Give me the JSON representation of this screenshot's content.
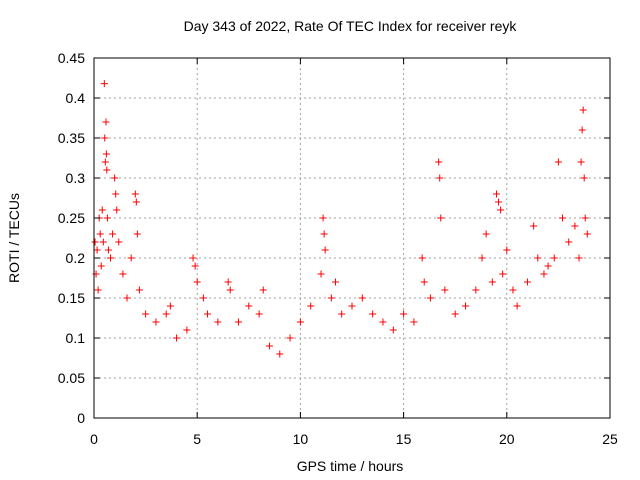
{
  "chart_data": {
    "type": "scatter",
    "title": "Day 343 of 2022, Rate Of TEC Index for receiver reyk",
    "xlabel": "GPS time / hours",
    "ylabel": "ROTI / TECUs",
    "xlim": [
      0,
      25
    ],
    "ylim": [
      0,
      0.45
    ],
    "x_ticks": [
      0,
      5,
      10,
      15,
      20,
      25
    ],
    "x_tick_labels": [
      "0",
      "5",
      "10",
      "15",
      "20",
      "25"
    ],
    "y_ticks": [
      0,
      0.05,
      0.1,
      0.15,
      0.2,
      0.25,
      0.3,
      0.35,
      0.4,
      0.45
    ],
    "y_tick_labels": [
      "0",
      "0.05",
      "0.1",
      "0.15",
      "0.2",
      "0.25",
      "0.3",
      "0.35",
      "0.4",
      "0.45"
    ],
    "grid": true,
    "marker": "+",
    "marker_color": "#ff0000",
    "series": [
      {
        "values": [
          [
            0.05,
            0.22
          ],
          [
            0.1,
            0.18
          ],
          [
            0.15,
            0.21
          ],
          [
            0.2,
            0.16
          ],
          [
            0.25,
            0.25
          ],
          [
            0.3,
            0.23
          ],
          [
            0.35,
            0.19
          ],
          [
            0.4,
            0.26
          ],
          [
            0.45,
            0.22
          ],
          [
            0.5,
            0.418
          ],
          [
            0.52,
            0.35
          ],
          [
            0.55,
            0.32
          ],
          [
            0.58,
            0.37
          ],
          [
            0.6,
            0.33
          ],
          [
            0.62,
            0.31
          ],
          [
            0.65,
            0.25
          ],
          [
            0.7,
            0.21
          ],
          [
            0.8,
            0.2
          ],
          [
            0.9,
            0.23
          ],
          [
            1.0,
            0.3
          ],
          [
            1.05,
            0.28
          ],
          [
            1.1,
            0.26
          ],
          [
            1.2,
            0.22
          ],
          [
            1.4,
            0.18
          ],
          [
            1.6,
            0.15
          ],
          [
            1.8,
            0.2
          ],
          [
            2.0,
            0.28
          ],
          [
            2.05,
            0.27
          ],
          [
            2.1,
            0.23
          ],
          [
            2.2,
            0.16
          ],
          [
            2.5,
            0.13
          ],
          [
            3.0,
            0.12
          ],
          [
            3.5,
            0.13
          ],
          [
            3.7,
            0.14
          ],
          [
            4.0,
            0.1
          ],
          [
            4.5,
            0.11
          ],
          [
            4.8,
            0.2
          ],
          [
            4.9,
            0.19
          ],
          [
            5.0,
            0.17
          ],
          [
            5.3,
            0.15
          ],
          [
            5.5,
            0.13
          ],
          [
            6.0,
            0.12
          ],
          [
            6.5,
            0.17
          ],
          [
            6.6,
            0.16
          ],
          [
            7.0,
            0.12
          ],
          [
            7.5,
            0.14
          ],
          [
            8.0,
            0.13
          ],
          [
            8.2,
            0.16
          ],
          [
            8.5,
            0.09
          ],
          [
            9.0,
            0.08
          ],
          [
            9.5,
            0.1
          ],
          [
            10.0,
            0.12
          ],
          [
            10.5,
            0.14
          ],
          [
            11.0,
            0.18
          ],
          [
            11.1,
            0.25
          ],
          [
            11.15,
            0.23
          ],
          [
            11.2,
            0.21
          ],
          [
            11.5,
            0.15
          ],
          [
            11.7,
            0.17
          ],
          [
            12.0,
            0.13
          ],
          [
            12.5,
            0.14
          ],
          [
            13.0,
            0.15
          ],
          [
            13.5,
            0.13
          ],
          [
            14.0,
            0.12
          ],
          [
            14.5,
            0.11
          ],
          [
            15.0,
            0.13
          ],
          [
            15.5,
            0.12
          ],
          [
            15.9,
            0.2
          ],
          [
            16.0,
            0.17
          ],
          [
            16.3,
            0.15
          ],
          [
            16.7,
            0.32
          ],
          [
            16.75,
            0.3
          ],
          [
            16.8,
            0.25
          ],
          [
            17.0,
            0.16
          ],
          [
            17.5,
            0.13
          ],
          [
            18.0,
            0.14
          ],
          [
            18.5,
            0.16
          ],
          [
            18.8,
            0.2
          ],
          [
            19.0,
            0.23
          ],
          [
            19.3,
            0.17
          ],
          [
            19.5,
            0.28
          ],
          [
            19.6,
            0.27
          ],
          [
            19.7,
            0.26
          ],
          [
            19.8,
            0.18
          ],
          [
            20.0,
            0.21
          ],
          [
            20.3,
            0.16
          ],
          [
            20.5,
            0.14
          ],
          [
            21.0,
            0.17
          ],
          [
            21.3,
            0.24
          ],
          [
            21.5,
            0.2
          ],
          [
            21.8,
            0.18
          ],
          [
            22.0,
            0.19
          ],
          [
            22.3,
            0.2
          ],
          [
            22.5,
            0.32
          ],
          [
            22.7,
            0.25
          ],
          [
            23.0,
            0.22
          ],
          [
            23.3,
            0.24
          ],
          [
            23.5,
            0.2
          ],
          [
            23.6,
            0.32
          ],
          [
            23.65,
            0.36
          ],
          [
            23.7,
            0.385
          ],
          [
            23.75,
            0.3
          ],
          [
            23.8,
            0.25
          ],
          [
            23.9,
            0.23
          ]
        ]
      }
    ]
  }
}
